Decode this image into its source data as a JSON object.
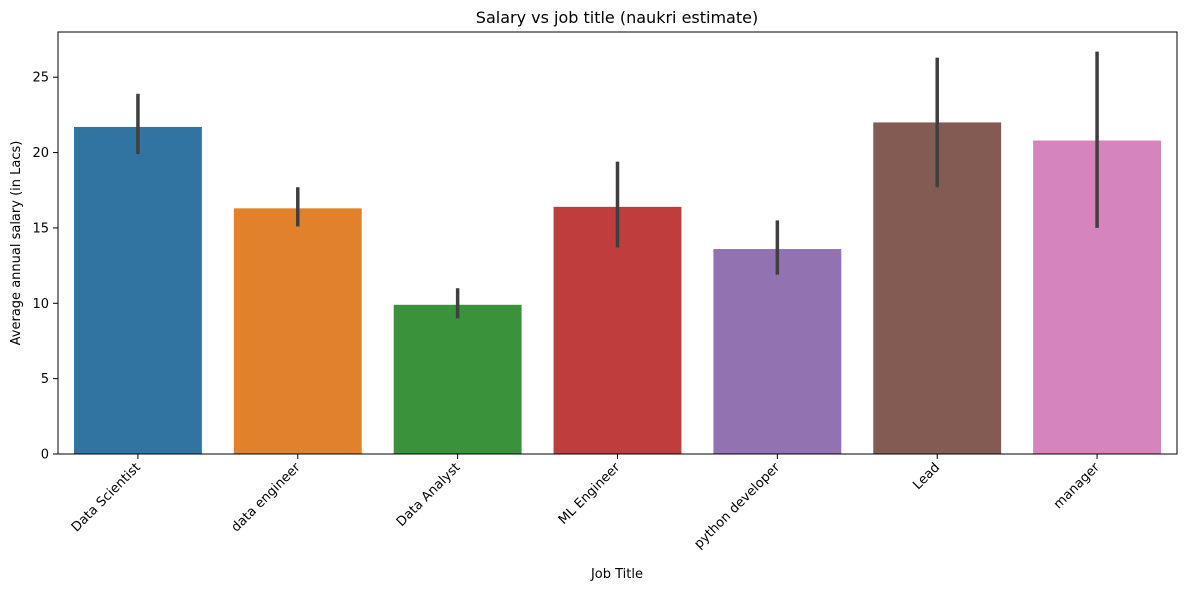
{
  "chart_data": {
    "type": "bar",
    "title": "Salary vs job title (naukri estimate)",
    "xlabel": "Job Title",
    "ylabel": "Average annual salary (in Lacs)",
    "ylim": [
      0,
      28
    ],
    "yticks": [
      0,
      5,
      10,
      15,
      20,
      25
    ],
    "grid": false,
    "legend": "none",
    "categories": [
      "Data Scientist",
      "data engineer",
      "Data Analyst",
      "ML Engineer",
      "python developer",
      "Lead",
      "manager"
    ],
    "values": [
      21.7,
      16.3,
      9.9,
      16.4,
      13.6,
      22.0,
      20.8
    ],
    "error_low": [
      19.9,
      15.1,
      9.0,
      13.7,
      11.9,
      17.7,
      15.0
    ],
    "error_high": [
      23.9,
      17.7,
      11.0,
      19.4,
      15.5,
      26.3,
      26.7
    ],
    "colors": [
      "#3274a1",
      "#e1812c",
      "#3a923a",
      "#c03d3e",
      "#9372b2",
      "#845b53",
      "#d684bd"
    ],
    "error_color": "#3f3f3f"
  }
}
